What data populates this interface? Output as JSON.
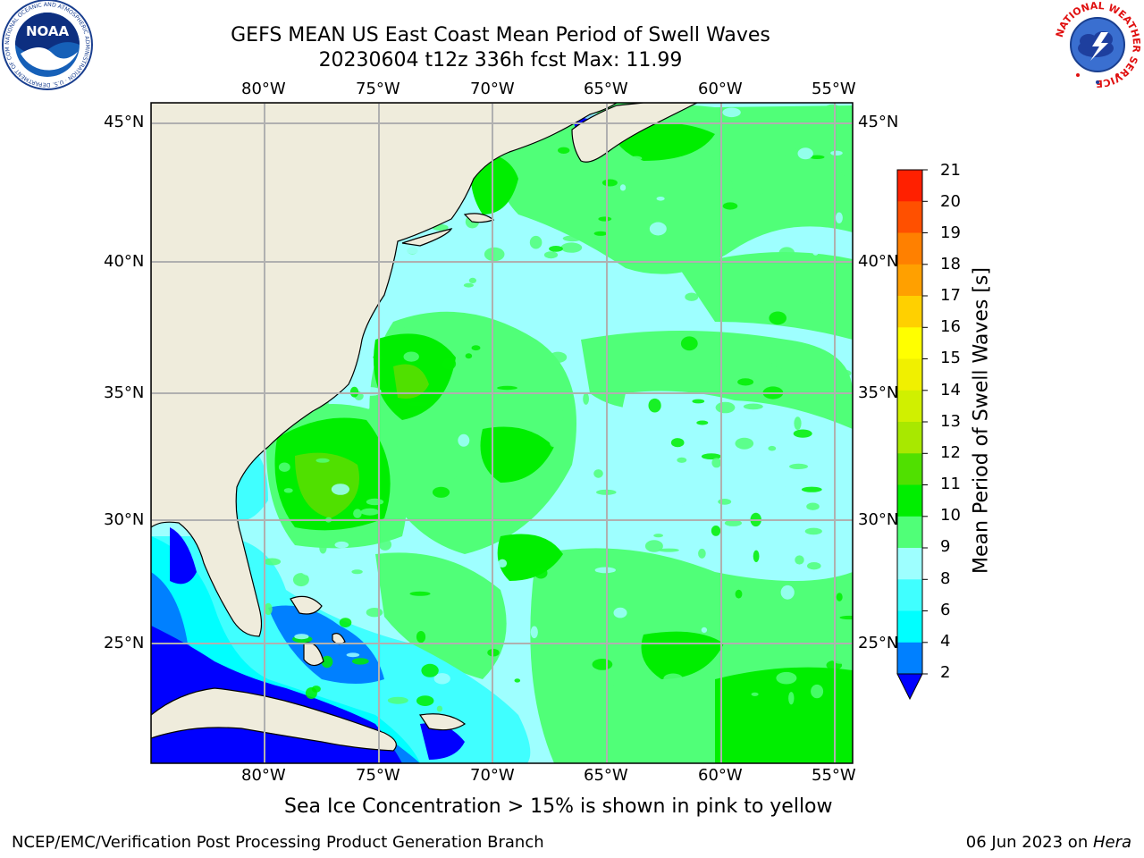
{
  "header": {
    "title_line1": "GEFS MEAN US East Coast Mean Period of Swell Waves",
    "title_line2": "20230604 t12z 336h fcst   Max: 11.99"
  },
  "logos": {
    "noaa_text": "NOAA",
    "noaa_ring_text": "NATIONAL OCEANIC AND ATMOSPHERIC ADMINISTRATION · U.S. DEPARTMENT OF COMMERCE",
    "nws_ring_text": "NATIONAL WEATHER SERVICE"
  },
  "map": {
    "lon_labels": [
      "80°W",
      "75°W",
      "70°W",
      "65°W",
      "60°W",
      "55°W"
    ],
    "lat_labels": [
      "45°N",
      "40°N",
      "35°N",
      "30°N",
      "25°N"
    ],
    "colors": {
      "land": "#efecdc",
      "grid": "#b0b0b0"
    }
  },
  "colorbar": {
    "label": "Mean Period of Swell Waves [s]",
    "ticks": [
      "2",
      "4",
      "6",
      "8",
      "9",
      "10",
      "11",
      "12",
      "13",
      "14",
      "15",
      "16",
      "17",
      "18",
      "19",
      "20",
      "21"
    ],
    "colors": [
      "#0000ff",
      "#0080ff",
      "#00ffff",
      "#40ffff",
      "#9effff",
      "#50ff78",
      "#00ee00",
      "#50e000",
      "#a8e800",
      "#d0f000",
      "#f0f000",
      "#ffff00",
      "#ffd000",
      "#ffa000",
      "#ff8000",
      "#ff5000",
      "#ff2000",
      "#ff0000"
    ]
  },
  "chart_data": {
    "type": "heatmap",
    "title": "GEFS MEAN US East Coast Mean Period of Swell Waves",
    "subtitle": "20230604 t12z 336h fcst   Max: 11.99",
    "x_axis": {
      "ticks": [
        "80°W",
        "75°W",
        "70°W",
        "65°W",
        "60°W",
        "55°W"
      ],
      "range": [
        -85,
        -54.5
      ]
    },
    "y_axis": {
      "ticks": [
        "45°N",
        "40°N",
        "35°N",
        "30°N",
        "25°N"
      ],
      "range": [
        20.5,
        45.8
      ]
    },
    "colorbar": {
      "label": "Mean Period of Swell Waves [s]",
      "range": [
        2,
        21
      ]
    },
    "max_value": 11.99
  },
  "footer": {
    "sea_ice_note": "Sea Ice Concentration > 15% is shown in pink to yellow",
    "credit": "NCEP/EMC/Verification Post Processing Product Generation Branch",
    "date_prefix": "06 Jun 2023 on ",
    "host": "Hera"
  }
}
